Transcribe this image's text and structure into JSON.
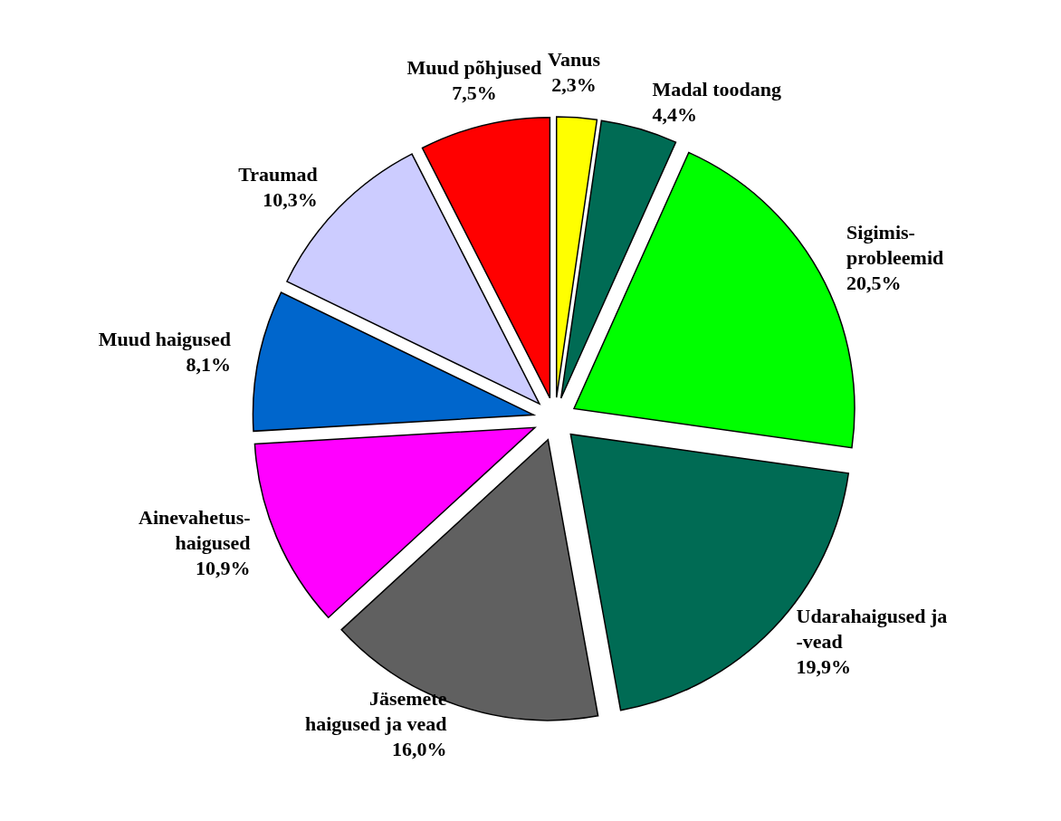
{
  "chart_data": {
    "type": "pie",
    "categories": [
      "Vanus",
      "Madal toodang",
      "Sigimis-\nprobleemid",
      "Udarahaigused ja\n-vead",
      "Jäsemete\nhaigused ja vead",
      "Ainevahetus-\nhaigused",
      "Muud haigused",
      "Traumad",
      "Muud põhjused"
    ],
    "values": [
      2.3,
      4.4,
      20.5,
      19.9,
      16.0,
      10.9,
      8.1,
      10.3,
      7.5
    ],
    "value_labels": [
      "2,3%",
      "4,4%",
      "20,5%",
      "19,9%",
      "16,0%",
      "10,9%",
      "8,1%",
      "10,3%",
      "7,5%"
    ],
    "colors": [
      "#ffff00",
      "#006b54",
      "#00ff00",
      "#006b54",
      "#606060",
      "#ff00ff",
      "#0066cc",
      "#ccccff",
      "#ff0000"
    ]
  }
}
